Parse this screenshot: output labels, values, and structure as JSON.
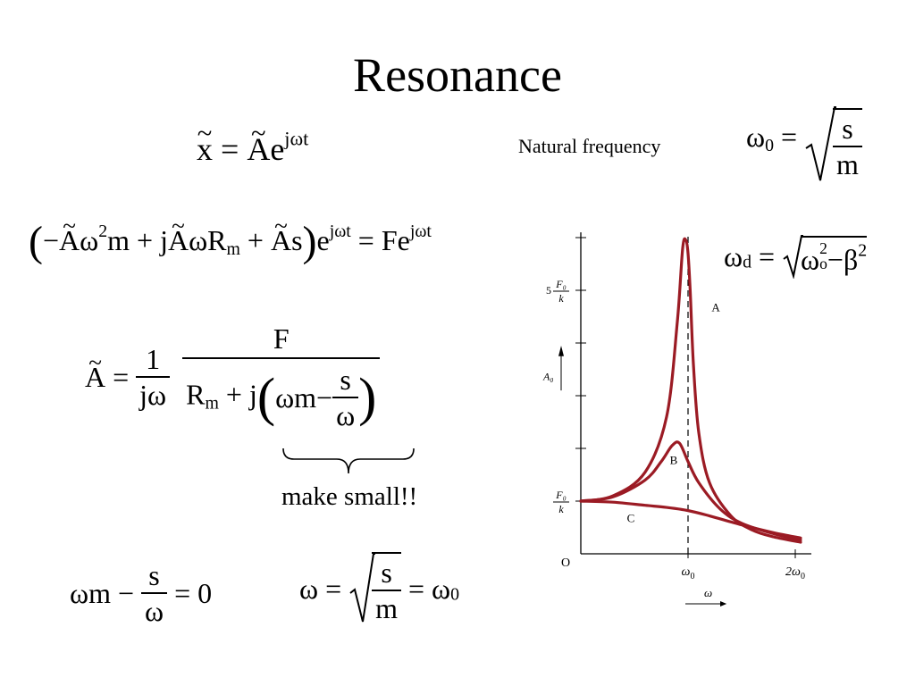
{
  "slide": {
    "title": "Resonance",
    "natural_frequency_label": "Natural frequency",
    "make_small_label": "make small!!"
  },
  "equations": {
    "x_tilde": {
      "lhs": "x",
      "eq": "=",
      "rhs_A": "A",
      "rhs_e": "e",
      "exp": "jωt"
    },
    "omega0": {
      "omega": "ω",
      "sub": "0",
      "eq": "=",
      "num": "s",
      "den": "m"
    },
    "motion": {
      "lparen": "(",
      "minus": "−",
      "A1": "A",
      "w": "ω",
      "sq": "2",
      "m": "m",
      "plus1": "+",
      "j": "j",
      "A2": "A",
      "wR": "ωR",
      "Rsub": "m",
      "plus2": "+",
      "A3": "A",
      "s": "s",
      "rparen": ")",
      "e": "e",
      "exp": "jωt",
      "eq": "=",
      "F": "Fe",
      "exp2": "jωt"
    },
    "amplitude": {
      "lhs": "A",
      "eq": "=",
      "one": "1",
      "jw": "jω",
      "F": "F",
      "R": "R",
      "Rsub": "m",
      "plus": "+",
      "j": "j",
      "lp": "(",
      "wm": "ωm",
      "minus": "−",
      "s": "s",
      "w": "ω",
      "rp": ")"
    },
    "condition": {
      "wm": "ωm",
      "minus": "−",
      "s": "s",
      "w": "ω",
      "eq": "=",
      "zero": "0"
    },
    "omega_result": {
      "w": "ω",
      "eq": "=",
      "s": "s",
      "m": "m",
      "eq2": "=",
      "w0": "ω",
      "sub": "0"
    },
    "omega_d": {
      "w": "ω",
      "sub": "d",
      "eq": "=",
      "wo": "ω",
      "sq": "2",
      "osub": "o",
      "minus": "−",
      "beta": "β",
      "bsq": "2"
    }
  },
  "chart_data": {
    "type": "line",
    "title": "",
    "xlabel": "ω",
    "ylabel": "A₀",
    "x_ticks": [
      {
        "value": 1,
        "label_main": "ω",
        "label_sub": "0"
      },
      {
        "value": 2,
        "label_main": "2ω",
        "label_sub": "0"
      }
    ],
    "y_ticks": [
      {
        "value": 1,
        "label_num": "F₀",
        "label_den": "k",
        "label_prefix": ""
      },
      {
        "value": 5,
        "label_num": "F₀",
        "label_den": "k",
        "label_prefix": "5"
      }
    ],
    "origin_label": "O",
    "xlim": [
      0,
      2.15
    ],
    "ylim": [
      0,
      6.1
    ],
    "vertical_dashed_line_at": 1,
    "series": [
      {
        "name": "A",
        "x": [
          0,
          0.3,
          0.6,
          0.8,
          0.9,
          0.95,
          0.98,
          1.0,
          1.02,
          1.05,
          1.1,
          1.2,
          1.4,
          1.6,
          1.8,
          2.05
        ],
        "values": [
          1.0,
          1.1,
          1.55,
          2.6,
          4.4,
          5.8,
          5.95,
          5.7,
          5.0,
          3.6,
          2.3,
          1.35,
          0.72,
          0.45,
          0.32,
          0.22
        ]
      },
      {
        "name": "B",
        "x": [
          0,
          0.3,
          0.6,
          0.75,
          0.85,
          0.92,
          1.0,
          1.1,
          1.3,
          1.5,
          1.8,
          2.05
        ],
        "values": [
          1.0,
          1.08,
          1.4,
          1.75,
          2.05,
          2.1,
          1.75,
          1.35,
          0.85,
          0.58,
          0.38,
          0.26
        ]
      },
      {
        "name": "C",
        "x": [
          0,
          0.3,
          0.6,
          0.8,
          1.0,
          1.2,
          1.5,
          1.8,
          2.05
        ],
        "values": [
          1.0,
          0.98,
          0.92,
          0.88,
          0.82,
          0.72,
          0.55,
          0.4,
          0.3
        ]
      }
    ],
    "colors": {
      "curve": "#9b1b24",
      "axis": "#000000"
    },
    "grid": false,
    "legend": "labels on curves"
  }
}
